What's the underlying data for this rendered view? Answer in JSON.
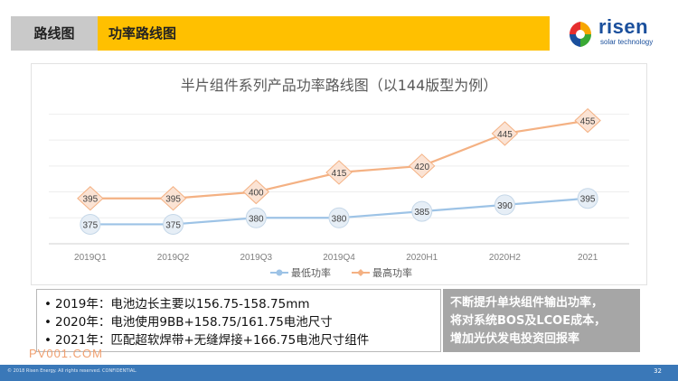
{
  "header": {
    "tag": "路线图",
    "title": "功率路线图"
  },
  "logo": {
    "word": "risen",
    "sub": "solar technology"
  },
  "chart_data": {
    "type": "line",
    "title": "半片组件系列产品功率路线图（以144版型为例）",
    "categories": [
      "2019Q1",
      "2019Q2",
      "2019Q3",
      "2019Q4",
      "2020H1",
      "2020H2",
      "2021"
    ],
    "series": [
      {
        "name": "最低功率",
        "values": [
          375,
          375,
          380,
          380,
          385,
          390,
          395
        ],
        "color": "#9dc3e6",
        "marker": "circle"
      },
      {
        "name": "最高功率",
        "values": [
          395,
          395,
          400,
          415,
          420,
          445,
          455
        ],
        "color": "#f4b183",
        "marker": "diamond"
      }
    ],
    "ylim": [
      360,
      470
    ],
    "grid": true,
    "legend": "bottom"
  },
  "notes": [
    "2019年：电池边长主要以156.75-158.75mm",
    "2020年：电池使用9BB+158.75/161.75电池尺寸",
    "2021年：匹配超软焊带+无缝焊接+166.75电池尺寸组件"
  ],
  "callout": [
    "不断提升单块组件输出功率，",
    "将对系统BOS及LCOE成本，",
    "增加光伏发电投资回报率"
  ],
  "watermark": "PV001.COM",
  "footer": {
    "left": "© 2018 Risen Energy. All rights reserved. CONFIDENTIAL.",
    "page": "32"
  },
  "colors": {
    "header_yellow": "#ffc000",
    "header_grey": "#c9c9c9",
    "footer_blue": "#3a78b8"
  }
}
